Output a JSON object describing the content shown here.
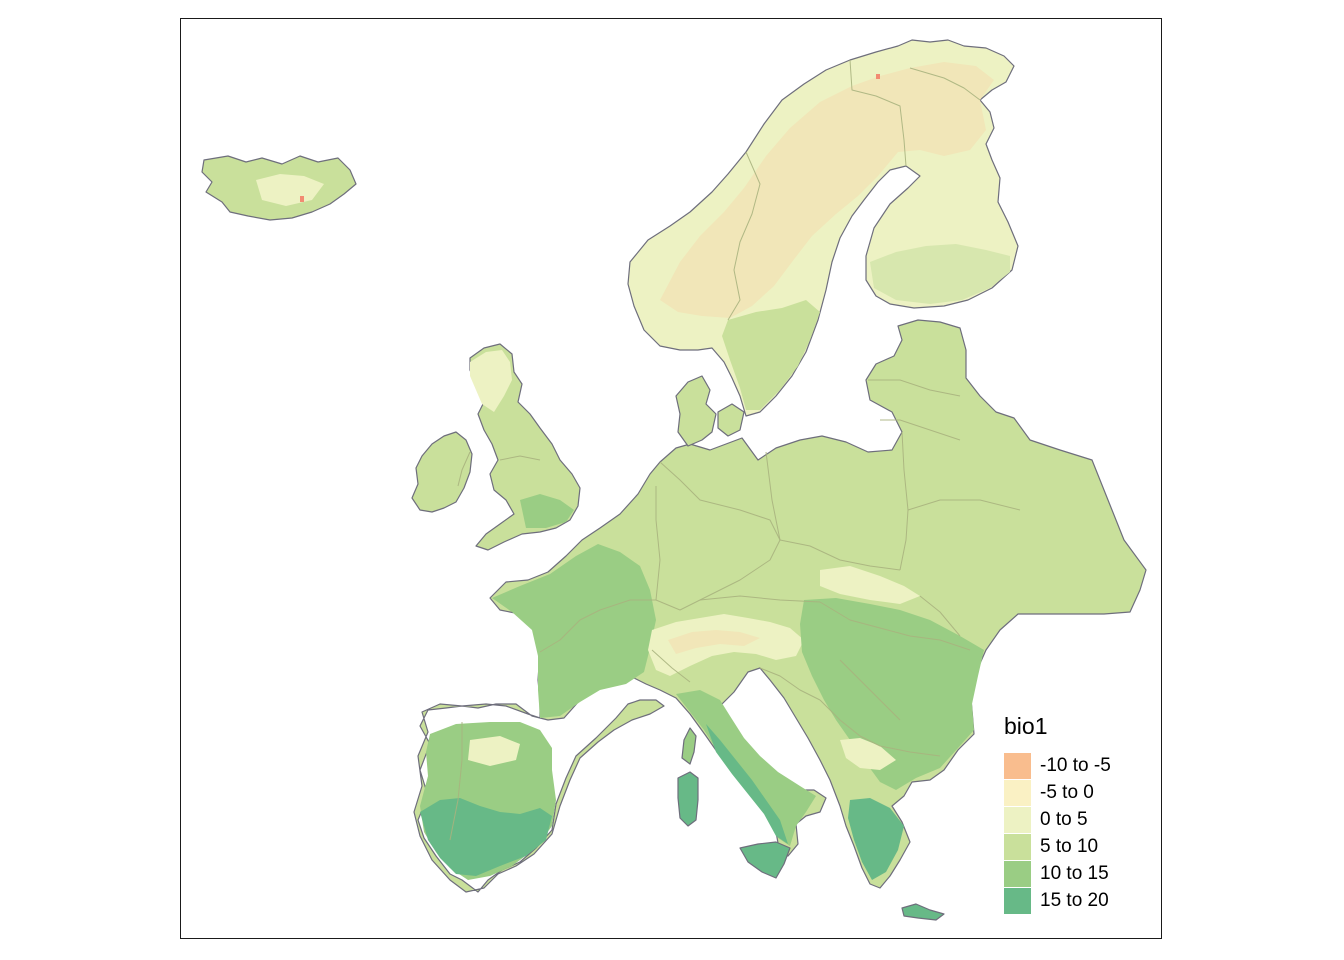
{
  "map": {
    "legend": {
      "title": "bio1",
      "classes": [
        {
          "label": "-10 to -5",
          "color": "#F9BD8E"
        },
        {
          "label": "-5 to 0",
          "color": "#FAF1C4"
        },
        {
          "label": "0 to 5",
          "color": "#EDF2C3"
        },
        {
          "label": "5 to 10",
          "color": "#C9E09B"
        },
        {
          "label": "10 to 15",
          "color": "#9ACD84"
        },
        {
          "label": "15 to 20",
          "color": "#67B987"
        }
      ]
    },
    "colors": {
      "background": "#FFFFFF",
      "frame": "#1A1A1A",
      "coastline": "#6E6E7C",
      "borders": "#A8B27E",
      "cold_mountain": "#F1E6B8",
      "nodata_grey": "#C8C8D2"
    }
  }
}
